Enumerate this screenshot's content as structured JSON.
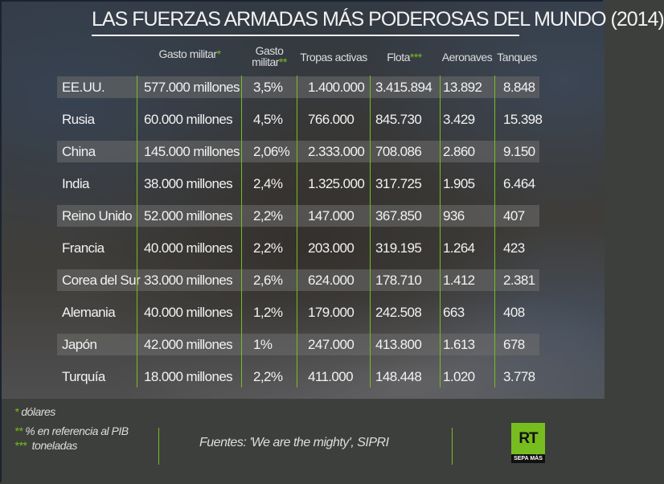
{
  "title": "LAS FUERZAS ARMADAS MÁS PODEROSAS DEL MUNDO (2014)",
  "headers": [
    {
      "text": "Gasto militar",
      "mark": "*"
    },
    {
      "text": "Gasto",
      "text2": "militar",
      "mark": "**"
    },
    {
      "text": "Tropas activas",
      "mark": ""
    },
    {
      "text": "Flota",
      "mark": "***"
    },
    {
      "text": "Aeronaves",
      "mark": ""
    },
    {
      "text": "Tanques",
      "mark": ""
    }
  ],
  "rows": [
    [
      "EE.UU.",
      "577.000 millones",
      "3,5%",
      "1.400.000",
      "3.415.894",
      "13.892",
      "8.848"
    ],
    [
      "Rusia",
      "60.000 millones",
      "4,5%",
      "766.000",
      "845.730",
      "3.429",
      "15.398"
    ],
    [
      "China",
      "145.000 millones",
      "2,06%",
      "2.333.000",
      "708.086",
      "2.860",
      "9.150"
    ],
    [
      "India",
      "38.000 millones",
      "2,4%",
      "1.325.000",
      "317.725",
      "1.905",
      "6.464"
    ],
    [
      "Reino Unido",
      "52.000 millones",
      "2,2%",
      "147.000",
      "367.850",
      "936",
      "407"
    ],
    [
      "Francia",
      "40.000 millones",
      "2,2%",
      "203.000",
      "319.195",
      "1.264",
      "423"
    ],
    [
      "Corea del Sur",
      "33.000 millones",
      "2,6%",
      "624.000",
      "178.710",
      "1.412",
      "2.381"
    ],
    [
      "Alemania",
      "40.000 millones",
      "1,2%",
      "179.000",
      "242.508",
      "663",
      "408"
    ],
    [
      "Japón",
      "42.000 millones",
      "1%",
      "247.000",
      "413.800",
      "1.613",
      "678"
    ],
    [
      "Turquía",
      "18.000 millones",
      "2,2%",
      "411.000",
      "148.448",
      "1.020",
      "3.778"
    ]
  ],
  "footnotes": [
    {
      "mark": "*",
      "text": "dólares"
    },
    {
      "mark": "**",
      "text": "% en referencia al PIB"
    },
    {
      "mark": "***",
      "text": "toneladas"
    }
  ],
  "source": "Fuentes: 'We are the mighty', SIPRI",
  "logo": {
    "text": "RT",
    "sub": "SEPA MÁS"
  },
  "colors": {
    "accent": "#78bd1f",
    "footer": "#3d3f3c"
  }
}
